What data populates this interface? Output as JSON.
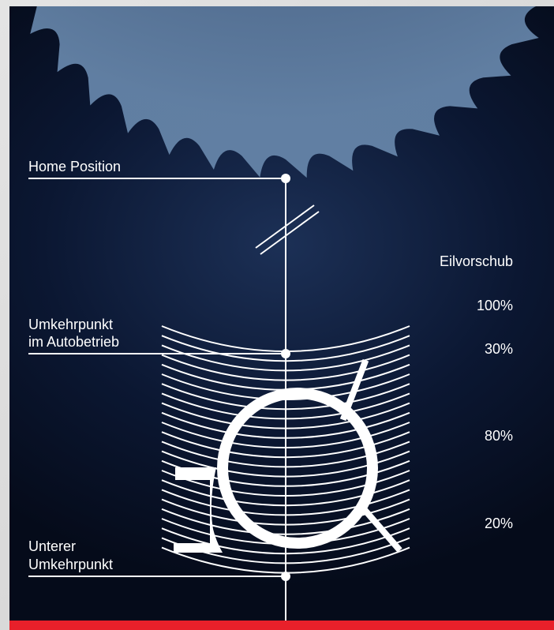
{
  "positions": {
    "home": "Home Position",
    "auto_line1": "Umkehrpunkt",
    "auto_line2": "im Autobetrieb",
    "lower_line1": "Unterer",
    "lower_line2": "Umkehrpunkt"
  },
  "feed": {
    "title": "Eilvorschub",
    "values": [
      "100%",
      "30%",
      "80%",
      "20%"
    ]
  },
  "colors": {
    "background": "#0b1732",
    "blade": "#5f7fa3",
    "lines": "#ffffff",
    "accent_bar": "#e8202a"
  }
}
